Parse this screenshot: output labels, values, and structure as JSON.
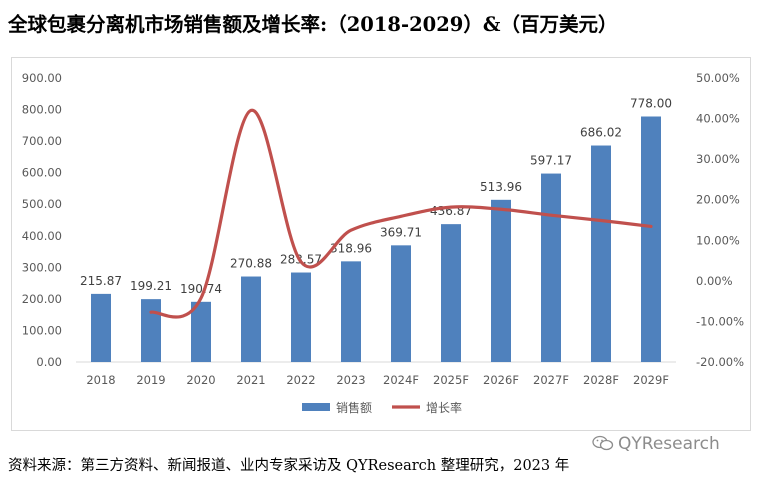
{
  "title": "全球包裹分离机市场销售额及增长率:（2018-2029）&（百万美元）",
  "source": "资料来源：第三方资料、新闻报道、业内专家采访及 QYResearch 整理研究，2023 年",
  "watermark": {
    "text": "QYResearch",
    "icon": "wechat-icon"
  },
  "chart_data": {
    "type": "bar",
    "categories": [
      "2018",
      "2019",
      "2020",
      "2021",
      "2022",
      "2023",
      "2024F",
      "2025F",
      "2026F",
      "2027F",
      "2028F",
      "2029F"
    ],
    "series": [
      {
        "name": "销售额",
        "type": "bar",
        "axis": "left",
        "values": [
          215.87,
          199.21,
          190.74,
          270.88,
          283.57,
          318.96,
          369.71,
          436.87,
          513.96,
          597.17,
          686.02,
          778.0
        ],
        "labels": [
          "215.87",
          "199.21",
          "190.74",
          "270.88",
          "283.57",
          "318.96",
          "369.71",
          "436.87",
          "513.96",
          "597.17",
          "686.02",
          "778.00"
        ],
        "color": "#4f81bd"
      },
      {
        "name": "增长率",
        "type": "line",
        "axis": "right",
        "values": [
          null,
          -7.72,
          -4.25,
          42.01,
          4.68,
          12.48,
          15.91,
          18.17,
          17.65,
          16.19,
          14.88,
          13.41
        ],
        "color": "#c0504d"
      }
    ],
    "y_left": {
      "min": 0,
      "max": 900,
      "step": 100,
      "tick_labels": [
        "0.00",
        "100.00",
        "200.00",
        "300.00",
        "400.00",
        "500.00",
        "600.00",
        "700.00",
        "800.00",
        "900.00"
      ]
    },
    "y_right": {
      "min": -20,
      "max": 50,
      "step": 10,
      "tick_labels": [
        "-20.00%",
        "-10.00%",
        "0.00%",
        "10.00%",
        "20.00%",
        "30.00%",
        "40.00%",
        "50.00%"
      ]
    },
    "grid": false,
    "legend": {
      "position": "bottom"
    }
  }
}
